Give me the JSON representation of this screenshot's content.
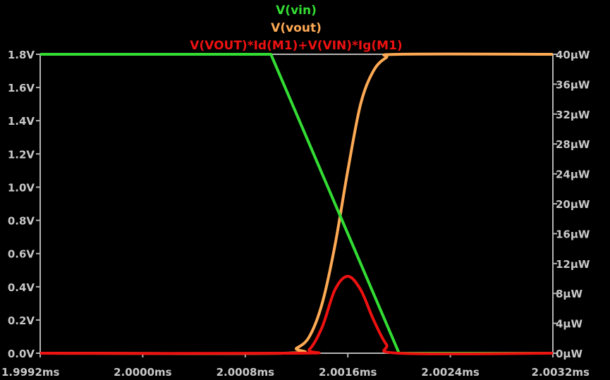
{
  "chart_data": {
    "type": "line",
    "x_unit": "ms",
    "xlim": [
      1.9992,
      2.0032
    ],
    "x_ticks": [
      "1.9992ms",
      "2.0000ms",
      "2.0008ms",
      "2.0016ms",
      "2.0024ms",
      "2.0032ms"
    ],
    "x_tick_values": [
      1.9992,
      2.0,
      2.0008,
      2.0016,
      2.0024,
      2.0032
    ],
    "left_axis": {
      "ylim": [
        0,
        1.8
      ],
      "ticks": [
        "0.0V",
        "0.2V",
        "0.4V",
        "0.6V",
        "0.8V",
        "1.0V",
        "1.2V",
        "1.4V",
        "1.6V",
        "1.8V"
      ],
      "tick_values": [
        0,
        0.2,
        0.4,
        0.6,
        0.8,
        1.0,
        1.2,
        1.4,
        1.6,
        1.8
      ]
    },
    "right_axis": {
      "ylim": [
        0,
        40
      ],
      "ticks": [
        "0µW",
        "4µW",
        "8µW",
        "12µW",
        "16µW",
        "20µW",
        "24µW",
        "28µW",
        "32µW",
        "36µW",
        "40µW"
      ],
      "tick_values": [
        0,
        4,
        8,
        12,
        16,
        20,
        24,
        28,
        32,
        36,
        40
      ]
    },
    "series": [
      {
        "name": "V(vin)",
        "axis": "left",
        "color": "#33dd33",
        "x": [
          1.9992,
          2.001,
          2.002,
          2.0032
        ],
        "y": [
          1.8,
          1.8,
          0.0,
          0.0
        ]
      },
      {
        "name": "V(vout)",
        "axis": "left",
        "color": "#ffaa55",
        "x": [
          1.9992,
          2.0011,
          2.0012,
          2.0013,
          2.0014,
          2.0015,
          2.0016,
          2.0017,
          2.0018,
          2.0019,
          2.002,
          2.0032
        ],
        "y": [
          0.0,
          0.0,
          0.03,
          0.1,
          0.3,
          0.65,
          1.1,
          1.5,
          1.7,
          1.78,
          1.8,
          1.8
        ]
      },
      {
        "name": "V(VOUT)*Id(M1)+V(VIN)*Ig(M1)",
        "axis": "right",
        "color": "#ee1111",
        "x": [
          1.9992,
          2.0012,
          2.0013,
          2.0014,
          2.0015,
          2.0016,
          2.0017,
          2.0018,
          2.0019,
          2.002,
          2.0032
        ],
        "y": [
          0,
          0,
          0.5,
          3.5,
          8.5,
          10.3,
          8.5,
          4.5,
          1.2,
          0,
          0
        ]
      }
    ]
  }
}
